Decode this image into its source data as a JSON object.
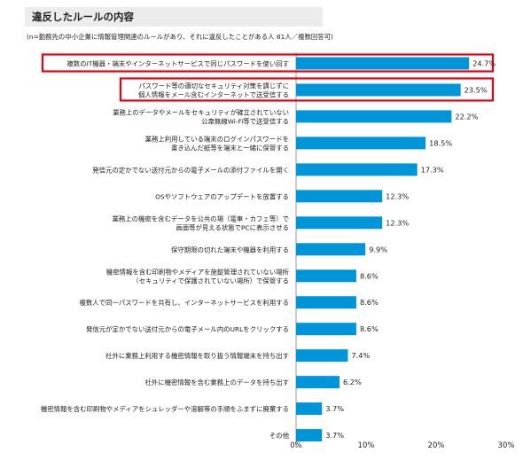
{
  "chart_data": {
    "type": "bar",
    "orientation": "horizontal",
    "title": "違反したルールの内容",
    "note": "(n=勤務先の中小企業に情報管理関連のルールがあり、それに違反したことがある人 81人／複数回答可)",
    "categories": [
      [
        "複数のIT機器・端末やインターネットサービスで同じパスワードを使い回す"
      ],
      [
        "パスワード等の適切なセキュリティ対策を講じずに",
        "個人情報をメール含むインターネットで送受信する"
      ],
      [
        "業務上のデータやメールをセキュリティが確立されていない",
        "公衆無線Wi-Fi等で送受信する"
      ],
      [
        "業務上利用している端末のログインパスワードを",
        "書き込んだ紙等を端末と一緒に保管する"
      ],
      [
        "発信元の定かでない送付元からの電子メールの添付ファイルを開く"
      ],
      [
        "OSやソフトウェアのアップデートを放置する"
      ],
      [
        "業務上の機密を含むデータを公共の場（電車・カフェ等）で",
        "画面等が見える状態でPCに表示させる"
      ],
      [
        "保守期限の切れた端末や機器を利用する"
      ],
      [
        "機密情報を含む印刷物やメディアを施錠管理されていない場所",
        "（セキュリティで保護されていない場所）で保管する"
      ],
      [
        "複数人で同一パスワードを共有し、インターネットサービスを利用する"
      ],
      [
        "発信元が定かでない送付元からの電子メール内のURLをクリックする"
      ],
      [
        "社外に業務上利用する機密情報を取り扱う情報端末を持ち出す"
      ],
      [
        "社外に機密情報を含む業務上のデータを持ち出す"
      ],
      [
        "機密情報を含む印刷物やメディアをシュレッダーや溶解等の手順をふまずに廃棄する"
      ],
      [
        "その他"
      ]
    ],
    "values": [
      24.7,
      23.5,
      22.2,
      18.5,
      17.3,
      12.3,
      12.3,
      9.9,
      8.6,
      8.6,
      8.6,
      7.4,
      6.2,
      3.7,
      3.7
    ],
    "value_labels": [
      "24.7%",
      "23.5%",
      "22.2%",
      "18.5%",
      "17.3%",
      "12.3%",
      "12.3%",
      "9.9%",
      "8.6%",
      "8.6%",
      "8.6%",
      "7.4%",
      "6.2%",
      "3.7%",
      "3.7%"
    ],
    "xlim": [
      0,
      30
    ],
    "x_ticks": [
      0,
      10,
      20,
      30
    ],
    "x_tick_labels": [
      "0%",
      "10%",
      "20%",
      "30%"
    ],
    "highlighted": [
      0,
      1
    ],
    "bar_color": "#0095d9",
    "highlight_color": "#e60012",
    "grid": false,
    "legend": false
  }
}
